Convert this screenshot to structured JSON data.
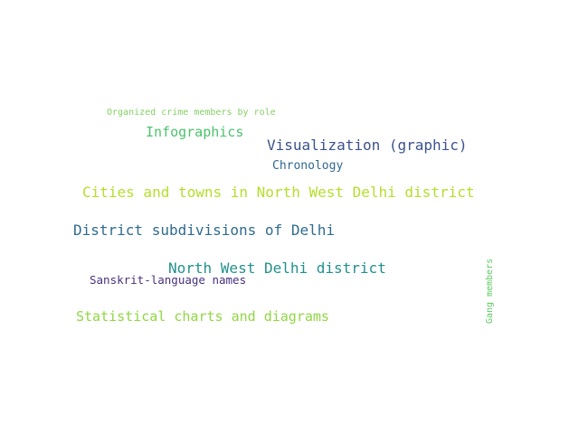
{
  "background": "#ffffff",
  "words": [
    {
      "text": "Organized crime members by role",
      "color": "#84d164"
    },
    {
      "text": "Infographics",
      "color": "#4cc26c"
    },
    {
      "text": "Visualization (graphic)",
      "color": "#3b528b"
    },
    {
      "text": "Chronology",
      "color": "#31688e"
    },
    {
      "text": "Cities and towns in North West Delhi district",
      "color": "#b5de2b"
    },
    {
      "text": "District subdivisions of Delhi",
      "color": "#2f6b8e"
    },
    {
      "text": "North West Delhi district",
      "color": "#21918c"
    },
    {
      "text": "Sanskrit-language names",
      "color": "#46327e"
    },
    {
      "text": "Statistical charts and diagrams",
      "color": "#90d743"
    },
    {
      "text": "Gang members",
      "color": "#5ec962"
    }
  ]
}
